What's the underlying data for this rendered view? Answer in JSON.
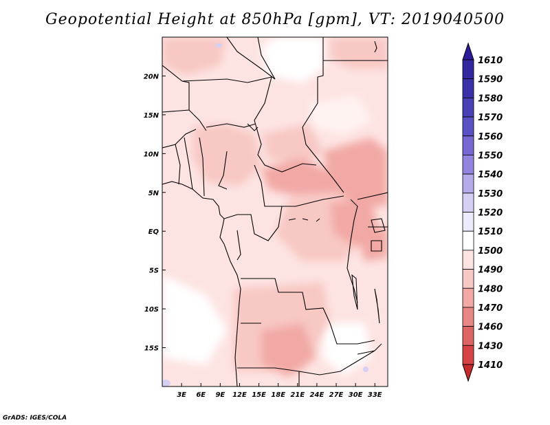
{
  "map": {
    "title": "Geopotential Height at 850hPa [gpm], VT: 2019040500",
    "credit": "GrADS: IGES/COLA",
    "lon_labels": [
      "3E",
      "6E",
      "9E",
      "12E",
      "15E",
      "18E",
      "21E",
      "24E",
      "27E",
      "30E",
      "33E"
    ],
    "lat_labels": [
      "20N",
      "15N",
      "10N",
      "5N",
      "EQ",
      "5S",
      "10S",
      "15S"
    ],
    "extent": {
      "lon": [
        0,
        35
      ],
      "lat": [
        -20,
        25
      ]
    }
  },
  "colorbar": {
    "labels": [
      "1610",
      "1590",
      "1580",
      "1570",
      "1560",
      "1550",
      "1540",
      "1530",
      "1520",
      "1510",
      "1500",
      "1490",
      "1480",
      "1470",
      "1460",
      "1430",
      "1410"
    ],
    "colors": [
      "#2a1c9a",
      "#32279e",
      "#3a31a8",
      "#4a40b5",
      "#5a52c4",
      "#7568d0",
      "#9385df",
      "#b4aaea",
      "#d4cff3",
      "#ecebfb",
      "#ffffff",
      "#fde4e2",
      "#f8c8c4",
      "#f2a9a5",
      "#e88886",
      "#dd6665",
      "#d64546",
      "#c52a2c"
    ]
  }
}
